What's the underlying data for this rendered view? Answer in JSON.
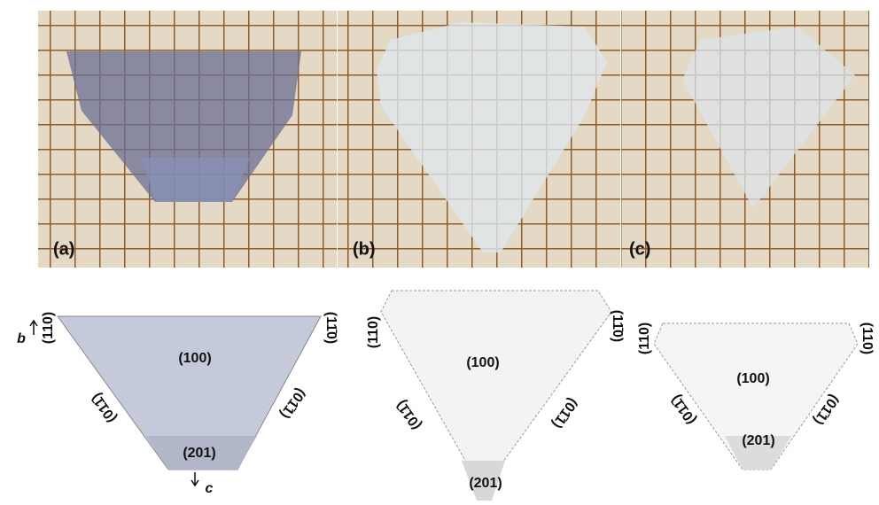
{
  "photos": [
    {
      "label": "(a)"
    },
    {
      "label": "(b)"
    },
    {
      "label": "(c)"
    }
  ],
  "diagrams": [
    {
      "faces": {
        "top_left": "(110)",
        "top_right": "(11̄0)",
        "center": "(100)",
        "left": "(011̄)",
        "right": "(01̄1)",
        "bottom": "(201)"
      }
    },
    {
      "faces": {
        "top_left": "(110)",
        "top_right": "(11̄0)",
        "center": "(100)",
        "left": "(011̄)",
        "right": "(01̄1)",
        "bottom": "(201)"
      }
    },
    {
      "faces": {
        "top_left": "(110)",
        "top_right": "(110)",
        "center": "(100)",
        "left": "(011̄)",
        "right": "(01̄1)",
        "bottom": "(201)"
      }
    }
  ],
  "axes": {
    "b": "b",
    "c": "c"
  }
}
